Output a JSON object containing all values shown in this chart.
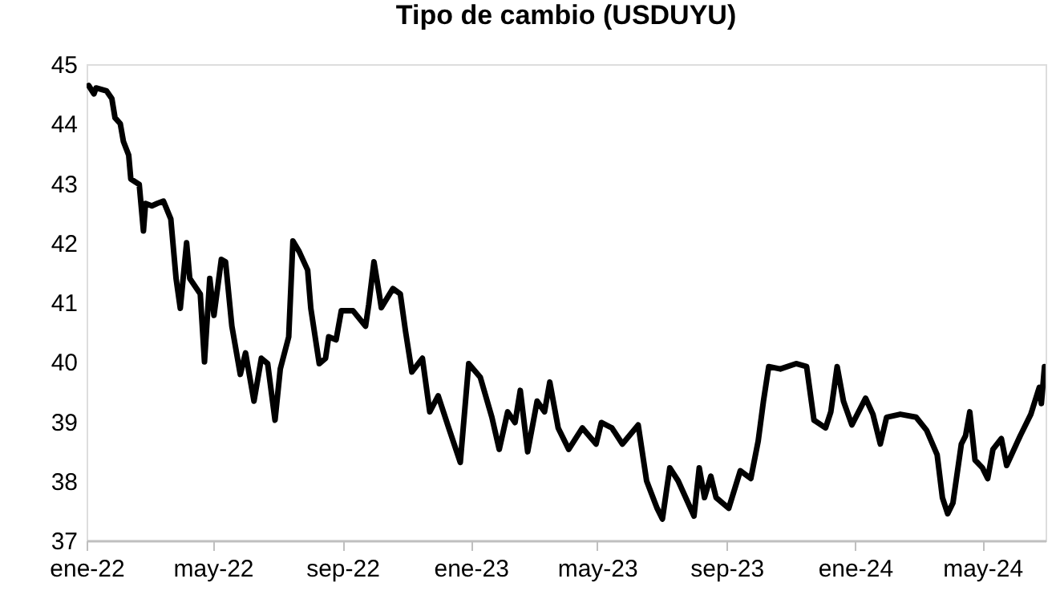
{
  "chart_data": {
    "type": "line",
    "title": "Tipo de cambio (USDUYU)",
    "x": [
      "2022-01-03",
      "2022-01-08",
      "2022-01-10",
      "2022-01-20",
      "2022-01-25",
      "2022-01-28",
      "2022-02-02",
      "2022-02-05",
      "2022-02-10",
      "2022-02-12",
      "2022-02-20",
      "2022-02-24",
      "2022-02-26",
      "2022-03-04",
      "2022-03-09",
      "2022-03-15",
      "2022-03-22",
      "2022-03-27",
      "2022-03-31",
      "2022-04-06",
      "2022-04-09",
      "2022-04-19",
      "2022-04-23",
      "2022-04-28",
      "2022-05-02",
      "2022-05-09",
      "2022-05-13",
      "2022-05-19",
      "2022-05-27",
      "2022-06-01",
      "2022-06-09",
      "2022-06-16",
      "2022-06-22",
      "2022-06-29",
      "2022-07-04",
      "2022-07-12",
      "2022-07-16",
      "2022-07-22",
      "2022-07-30",
      "2022-08-02",
      "2022-08-10",
      "2022-08-16",
      "2022-08-19",
      "2022-08-26",
      "2022-08-31",
      "2022-09-11",
      "2022-09-23",
      "2022-09-26",
      "2022-10-01",
      "2022-10-06",
      "2022-10-08",
      "2022-10-19",
      "2022-10-26",
      "2022-10-31",
      "2022-11-06",
      "2022-11-16",
      "2022-11-23",
      "2022-12-01",
      "2022-12-11",
      "2022-12-22",
      "2022-12-30",
      "2023-01-10",
      "2023-01-21",
      "2023-01-28",
      "2023-02-05",
      "2023-02-12",
      "2023-02-17",
      "2023-02-24",
      "2023-03-05",
      "2023-03-12",
      "2023-03-17",
      "2023-03-25",
      "2023-04-04",
      "2023-04-17",
      "2023-04-30",
      "2023-05-05",
      "2023-05-15",
      "2023-05-25",
      "2023-06-09",
      "2023-06-17",
      "2023-06-27",
      "2023-07-02",
      "2023-07-09",
      "2023-07-17",
      "2023-08-01",
      "2023-08-06",
      "2023-08-11",
      "2023-08-17",
      "2023-08-22",
      "2023-09-03",
      "2023-09-14",
      "2023-09-24",
      "2023-10-01",
      "2023-10-06",
      "2023-10-11",
      "2023-10-22",
      "2023-11-06",
      "2023-11-16",
      "2023-11-23",
      "2023-12-04",
      "2023-12-09",
      "2023-12-15",
      "2023-12-21",
      "2023-12-29",
      "2024-01-11",
      "2024-01-18",
      "2024-01-25",
      "2024-01-31",
      "2024-02-13",
      "2024-02-28",
      "2024-03-09",
      "2024-03-19",
      "2024-03-24",
      "2024-03-29",
      "2024-04-03",
      "2024-04-11",
      "2024-04-15",
      "2024-04-19",
      "2024-04-24",
      "2024-05-01",
      "2024-05-06",
      "2024-05-11",
      "2024-05-19",
      "2024-05-24",
      "2024-06-06",
      "2024-06-16",
      "2024-06-24",
      "2024-06-26",
      "2024-06-29"
    ],
    "series": [
      {
        "color": "#000000",
        "values": [
          44.64,
          44.5,
          44.6,
          44.55,
          44.42,
          44.1,
          44.0,
          43.7,
          43.47,
          43.07,
          42.98,
          42.2,
          42.66,
          42.62,
          42.66,
          42.7,
          42.4,
          41.4,
          40.9,
          42.0,
          41.4,
          41.14,
          40.0,
          41.4,
          40.78,
          41.72,
          41.68,
          40.6,
          39.79,
          40.15,
          39.34,
          40.06,
          39.97,
          39.02,
          39.88,
          40.42,
          42.03,
          41.85,
          41.54,
          40.9,
          39.97,
          40.06,
          40.42,
          40.37,
          40.86,
          40.86,
          40.6,
          40.96,
          41.68,
          41.14,
          40.91,
          41.23,
          41.14,
          40.51,
          39.83,
          40.06,
          39.16,
          39.43,
          38.89,
          38.31,
          39.97,
          39.74,
          39.07,
          38.53,
          39.16,
          38.98,
          39.52,
          38.49,
          39.34,
          39.16,
          39.66,
          38.89,
          38.53,
          38.89,
          38.62,
          38.98,
          38.89,
          38.62,
          38.94,
          38.0,
          37.54,
          37.36,
          38.22,
          38.0,
          37.41,
          38.22,
          37.72,
          38.08,
          37.72,
          37.54,
          38.17,
          38.04,
          38.67,
          39.34,
          39.92,
          39.88,
          39.97,
          39.92,
          39.02,
          38.89,
          39.16,
          39.92,
          39.34,
          38.94,
          39.39,
          39.12,
          38.62,
          39.07,
          39.12,
          39.07,
          38.85,
          38.44,
          37.72,
          37.45,
          37.63,
          38.62,
          38.76,
          39.16,
          38.35,
          38.22,
          38.04,
          38.53,
          38.71,
          38.26,
          38.76,
          39.12,
          39.57,
          39.3,
          39.92
        ]
      }
    ],
    "xlim": [
      "2022-01-01",
      "2024-06-30"
    ],
    "xticks": [
      {
        "value": "2022-01-01",
        "label": "ene-22"
      },
      {
        "value": "2022-05-01",
        "label": "may-22"
      },
      {
        "value": "2022-09-01",
        "label": "sep-22"
      },
      {
        "value": "2023-01-01",
        "label": "ene-23"
      },
      {
        "value": "2023-05-01",
        "label": "may-23"
      },
      {
        "value": "2023-09-01",
        "label": "sep-23"
      },
      {
        "value": "2024-01-01",
        "label": "ene-24"
      },
      {
        "value": "2024-05-01",
        "label": "may-24"
      }
    ],
    "ylim": [
      37,
      45
    ],
    "yticks": [
      37,
      38,
      39,
      40,
      41,
      42,
      43,
      44,
      45
    ],
    "grid": false,
    "marker": "none",
    "line_style": "solid"
  }
}
